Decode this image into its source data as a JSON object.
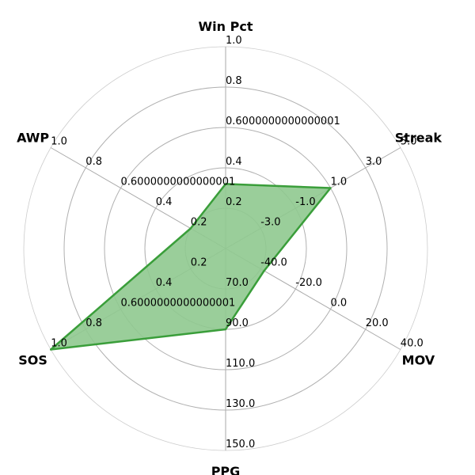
{
  "chart_data": {
    "type": "radar",
    "axes": [
      {
        "name": "Win Pct",
        "ticks": [
          "0.2",
          "0.4",
          "0.6000000000000001",
          "0.8",
          "1.0"
        ],
        "range": [
          0,
          1
        ],
        "value": 0.32
      },
      {
        "name": "Streak",
        "ticks": [
          "-3.0",
          "-1.0",
          "1.0",
          "3.0",
          "5.0"
        ],
        "range": [
          -5,
          5
        ],
        "value": 1.0
      },
      {
        "name": "MOV",
        "ticks": [
          "-40.0",
          "-20.0",
          "0.0",
          "20.0",
          "40.0"
        ],
        "range": [
          -60,
          40
        ],
        "value": -38
      },
      {
        "name": "PPG",
        "ticks": [
          "70.0",
          "90.0",
          "110.0",
          "130.0",
          "150.0"
        ],
        "range": [
          50,
          150
        ],
        "value": 90
      },
      {
        "name": "SOS",
        "ticks": [
          "0.2",
          "0.4",
          "0.6000000000000001",
          "0.8",
          "1.0"
        ],
        "range": [
          0,
          1
        ],
        "value": 1.0
      },
      {
        "name": "AWP",
        "ticks": [
          "0.2",
          "0.4",
          "0.6000000000000001",
          "0.8",
          "1.0"
        ],
        "range": [
          0,
          1
        ],
        "value": 0.2
      }
    ],
    "series": [
      {
        "values": [
          0.32,
          1.0,
          -38,
          90,
          1.0,
          0.2
        ]
      }
    ],
    "colors": {
      "fill": "#8fc98f",
      "stroke": "#3a9e3a",
      "grid": "#b0b0b0",
      "spoke": "#aaaaaa"
    },
    "grid": true
  }
}
